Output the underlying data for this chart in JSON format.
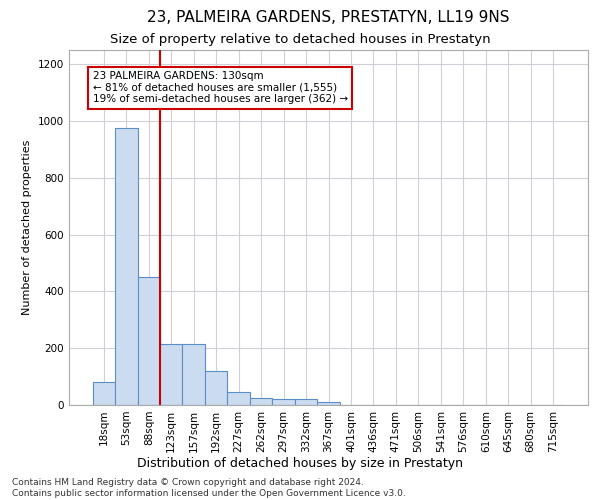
{
  "title": "23, PALMEIRA GARDENS, PRESTATYN, LL19 9NS",
  "subtitle": "Size of property relative to detached houses in Prestatyn",
  "xlabel": "Distribution of detached houses by size in Prestatyn",
  "ylabel": "Number of detached properties",
  "bar_labels": [
    "18sqm",
    "53sqm",
    "88sqm",
    "123sqm",
    "157sqm",
    "192sqm",
    "227sqm",
    "262sqm",
    "297sqm",
    "332sqm",
    "367sqm",
    "401sqm",
    "436sqm",
    "471sqm",
    "506sqm",
    "541sqm",
    "576sqm",
    "610sqm",
    "645sqm",
    "680sqm",
    "715sqm"
  ],
  "bar_values": [
    80,
    975,
    450,
    215,
    215,
    120,
    47,
    25,
    22,
    20,
    12,
    0,
    0,
    0,
    0,
    0,
    0,
    0,
    0,
    0,
    0
  ],
  "bar_color": "#ccdcf0",
  "bar_edge_color": "#5b8dc8",
  "vline_x": 2.5,
  "vline_color": "#cc0000",
  "annotation_text": "23 PALMEIRA GARDENS: 130sqm\n← 81% of detached houses are smaller (1,555)\n19% of semi-detached houses are larger (362) →",
  "annotation_box_color": "#ffffff",
  "annotation_box_edge": "#cc0000",
  "ylim": [
    0,
    1250
  ],
  "yticks": [
    0,
    200,
    400,
    600,
    800,
    1000,
    1200
  ],
  "grid_color": "#d0d0d8",
  "footnote": "Contains HM Land Registry data © Crown copyright and database right 2024.\nContains public sector information licensed under the Open Government Licence v3.0.",
  "title_fontsize": 11,
  "subtitle_fontsize": 9.5,
  "xlabel_fontsize": 9,
  "ylabel_fontsize": 8,
  "tick_fontsize": 7.5,
  "annot_fontsize": 7.5,
  "footnote_fontsize": 6.5
}
